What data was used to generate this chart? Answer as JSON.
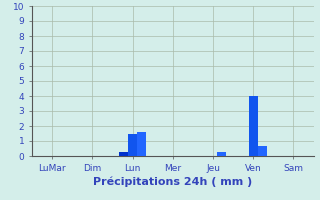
{
  "categories": [
    "LuMar",
    "Dim",
    "Lun",
    "Mer",
    "Jeu",
    "Ven",
    "Sam"
  ],
  "bar_data": [
    [
      0,
      0,
      0.3,
      0,
      0,
      0,
      0
    ],
    [
      0,
      0,
      1.5,
      0,
      0,
      4.0,
      0
    ],
    [
      0,
      0,
      1.6,
      0,
      0.3,
      0.7,
      0
    ]
  ],
  "bar_colors": [
    "#0033cc",
    "#1155ee",
    "#2266ff"
  ],
  "background_color": "#d4eeea",
  "plot_bg_color": "#d4eeea",
  "xlabel": "Précipitations 24h ( mm )",
  "ylim": [
    0,
    10
  ],
  "yticks": [
    0,
    1,
    2,
    3,
    4,
    5,
    6,
    7,
    8,
    9,
    10
  ],
  "grid_color": "#aabbaa",
  "xlabel_fontsize": 8,
  "tick_fontsize": 6.5,
  "tick_color": "#3344bb",
  "bar_width": 0.22
}
